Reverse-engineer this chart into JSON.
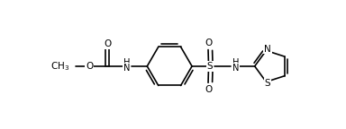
{
  "bg_color": "#ffffff",
  "line_color": "#000000",
  "line_width": 1.2,
  "font_size": 7.5,
  "figsize": [
    3.84,
    1.44
  ],
  "dpi": 100,
  "xlim": [
    0,
    10
  ],
  "ylim": [
    0,
    3
  ]
}
